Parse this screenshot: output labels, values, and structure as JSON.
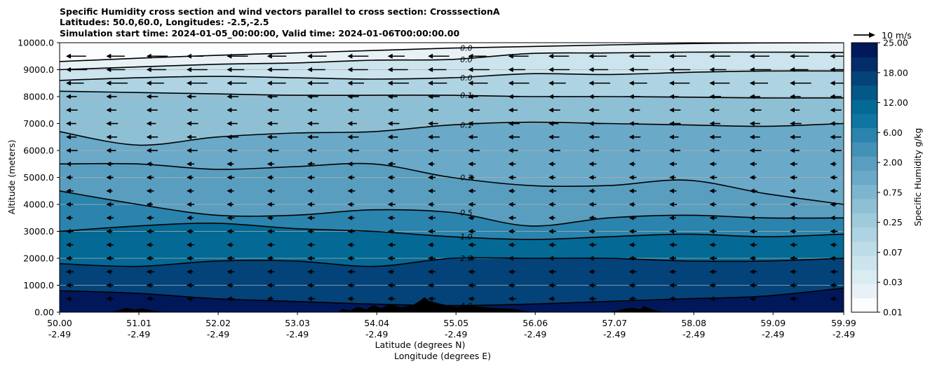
{
  "chart_data": {
    "type": "heatmap",
    "title": [
      "Specific Humidity cross section and wind vectors parallel to cross section: CrosssectionA",
      "Latitudes: 50.0,60.0, Longitudes: -2.5,-2.5",
      "Simulation start time: 2024-01-05_00:00:00, Valid time: 2024-01-06T00:00:00.00"
    ],
    "ylabel": "Altitude (meters)",
    "xlabel_lat": "Latitude (degrees N)",
    "xlabel_lon": "Longitude (degrees E)",
    "ylim": [
      0,
      10000
    ],
    "xlim": [
      50.0,
      59.99
    ],
    "y_ticks": [
      "0.00",
      "1000.0",
      "2000.0",
      "3000.0",
      "4000.0",
      "5000.0",
      "6000.0",
      "7000.0",
      "8000.0",
      "9000.0",
      "10000.0"
    ],
    "y_tick_values": [
      0,
      1000,
      2000,
      3000,
      4000,
      5000,
      6000,
      7000,
      8000,
      9000,
      10000
    ],
    "x_tick_lat": [
      "50.00",
      "51.01",
      "52.02",
      "53.03",
      "54.04",
      "55.05",
      "56.06",
      "57.07",
      "58.08",
      "59.09",
      "59.99"
    ],
    "x_tick_lon": [
      "-2.49",
      "-2.49",
      "-2.49",
      "-2.49",
      "-2.49",
      "-2.49",
      "-2.49",
      "-2.49",
      "-2.49",
      "-2.49",
      "-2.49"
    ],
    "x_tick_values": [
      50.0,
      51.01,
      52.02,
      53.03,
      54.04,
      55.05,
      56.06,
      57.07,
      58.08,
      59.09,
      59.99
    ],
    "grid": "horizontal",
    "colorbar": {
      "label": "Specific Humidity g/kg",
      "tick_labels": [
        "0.01",
        "0.03",
        "0.07",
        "0.25",
        "0.75",
        "2.00",
        "6.00",
        "12.00",
        "18.00",
        "25.00"
      ],
      "levels": [
        0.01,
        0.02,
        0.03,
        0.05,
        0.07,
        0.1,
        0.25,
        0.5,
        0.75,
        1.0,
        2.0,
        4.0,
        6.0,
        9.0,
        12.0,
        15.0,
        18.0,
        21.0,
        25.0
      ],
      "colors": [
        "#fbfdfe",
        "#e8f2f6",
        "#d9ecf2",
        "#cbe4ed",
        "#bddce8",
        "#aed3e2",
        "#9fcadc",
        "#8ec0d5",
        "#7db5cf",
        "#6aa9c8",
        "#5a9ebf",
        "#4391b7",
        "#2a84ad",
        "#1175a2",
        "#046994",
        "#035887",
        "#034379",
        "#022d69",
        "#00175a"
      ]
    },
    "wind_scale_label": "10 m/s",
    "contours": [
      {
        "label": "0.0",
        "alt": [
          9300,
          9500,
          9650,
          9800,
          9900,
          9980,
          10000
        ]
      },
      {
        "label": "0.0",
        "alt": [
          9000,
          9100,
          9200,
          9250,
          9350,
          9380,
          9600,
          9620,
          9650,
          9650,
          9640
        ]
      },
      {
        "label": "0.0",
        "alt": [
          8600,
          8700,
          8750,
          8700,
          8650,
          8700,
          8850,
          8820,
          8900,
          8950,
          8950
        ]
      },
      {
        "label": "0.1",
        "alt": [
          8200,
          8150,
          8100,
          8050,
          8050,
          8050,
          8000,
          8000,
          7980,
          7950,
          7950
        ]
      },
      {
        "label": "0.1",
        "alt": [
          6700,
          6200,
          6500,
          6650,
          6700,
          6950,
          7050,
          7000,
          6950,
          6900,
          7000
        ]
      },
      {
        "label": "0.2",
        "alt": [
          5500,
          5500,
          5300,
          5400,
          5500,
          5000,
          4700,
          4700,
          4900,
          4400,
          4000
        ]
      },
      {
        "label": "0.5",
        "alt": [
          4500,
          4000,
          3600,
          3600,
          3800,
          3700,
          3200,
          3500,
          3600,
          3500,
          3500
        ]
      },
      {
        "label": "1.0",
        "alt": [
          3000,
          3200,
          3300,
          3100,
          3000,
          2800,
          2700,
          2800,
          2900,
          2800,
          2900
        ]
      },
      {
        "label": "2.0",
        "alt": [
          1800,
          1700,
          1900,
          1900,
          1700,
          2000,
          2000,
          2000,
          1900,
          1900,
          2000
        ]
      },
      {
        "label": "4.0",
        "alt": [
          800,
          700,
          500,
          400,
          300,
          250,
          300,
          400,
          500,
          600,
          900
        ]
      }
    ],
    "terrain": {
      "x": [
        50.65,
        50.75,
        50.85,
        50.95,
        51.05,
        51.2,
        51.35,
        53.55,
        53.6,
        53.7,
        53.8,
        53.9,
        54.0,
        54.1,
        54.2,
        54.35,
        54.5,
        54.6,
        54.65,
        54.7,
        54.8,
        54.9,
        55.05,
        55.2,
        55.5,
        55.8,
        56.0,
        57.0,
        57.1,
        57.2,
        57.3,
        57.4,
        57.45,
        57.55,
        57.7
      ],
      "alt": [
        0,
        70,
        160,
        90,
        140,
        60,
        0,
        0,
        120,
        60,
        200,
        100,
        260,
        140,
        310,
        180,
        260,
        450,
        560,
        430,
        350,
        280,
        200,
        250,
        160,
        120,
        0,
        0,
        60,
        130,
        160,
        110,
        230,
        100,
        0
      ]
    }
  }
}
